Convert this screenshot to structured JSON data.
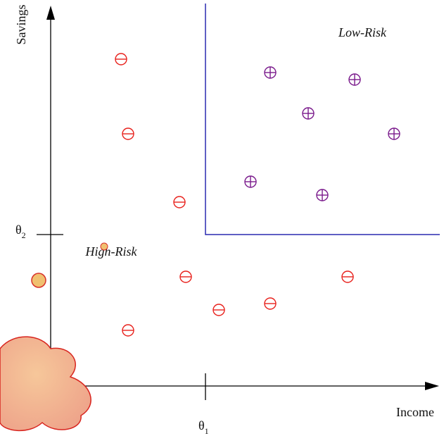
{
  "axes": {
    "y_label": "Savings",
    "x_label": "Income"
  },
  "thresholds": {
    "theta1": {
      "symbol": "θ",
      "subscript": "1"
    },
    "theta2": {
      "symbol": "θ",
      "subscript": "2"
    }
  },
  "regions": {
    "low_risk": "Low-Risk",
    "high_risk": "High-Risk"
  }
}
